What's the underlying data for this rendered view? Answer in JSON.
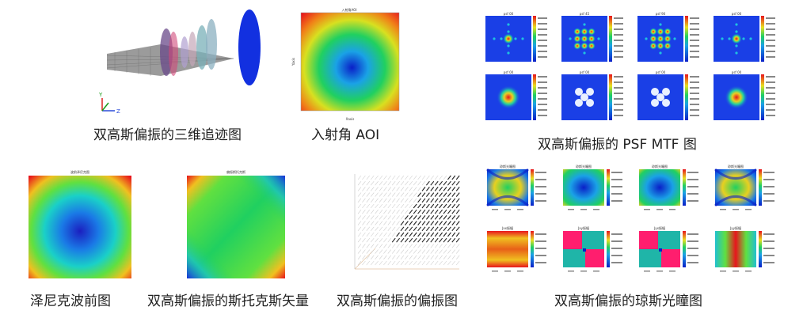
{
  "captions": {
    "raytrace": "双高斯偏振的三维追迹图",
    "aoi": "入射角 AOI",
    "psf_mtf": "双高斯偏振的 PSF MTF 图",
    "zernike": "泽尼克波前图",
    "stokes": "双高斯偏振的斯托克斯矢量",
    "polarization": "双高斯偏振的偏振图",
    "jones": "双高斯偏振的琼斯光瞳图"
  },
  "raytrace": {
    "axis_labels": [
      "Y",
      "Z"
    ],
    "axis_colors": {
      "y": "#1a9a1a",
      "z": "#2b4bd8",
      "x": "#d22"
    }
  },
  "aoi": {
    "title": "入射角AOI",
    "xlabel": "Xaxis",
    "ylabel": "Yaxis"
  },
  "psf": {
    "titles": [
      "psf 00",
      "psf 45",
      "psf 90",
      "psf 00",
      "psf 00",
      "psf 00",
      "psf 00",
      "psf 00"
    ]
  },
  "zernike": {
    "title": "波前泽尼克图"
  },
  "stokes": {
    "title": "偏振斯托克斯"
  },
  "jones": {
    "titles": [
      "琼斯光瞳图",
      "琼斯光瞳图",
      "琼斯光瞳图",
      "琼斯光瞳图",
      "Jxx振幅",
      "Jxy振幅",
      "Jyx振幅",
      "Jyy振幅"
    ]
  },
  "colors": {
    "jet_low": "#0a1fc8",
    "jet_mid": "#20d060",
    "jet_high": "#e8141c",
    "magenta": "#ff1e6e",
    "teal": "#1fb5a8"
  }
}
